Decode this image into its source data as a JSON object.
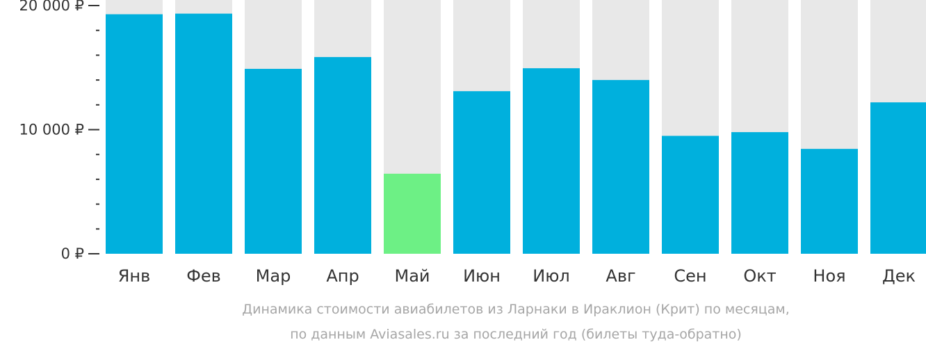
{
  "chart_data": {
    "type": "bar",
    "categories": [
      "Янв",
      "Фев",
      "Мар",
      "Апр",
      "Май",
      "Июн",
      "Июл",
      "Авг",
      "Сен",
      "Окт",
      "Ноя",
      "Дек"
    ],
    "values": [
      19300,
      19350,
      14900,
      15850,
      6450,
      13100,
      14950,
      14000,
      9500,
      9800,
      8450,
      12200
    ],
    "ylim": [
      0,
      20000
    ],
    "yticks": [
      0,
      10000,
      20000
    ],
    "ytick_labels": [
      "0 ₽",
      "10 000 ₽",
      "20 000 ₽"
    ],
    "minor_ytick_step": 2000,
    "highlight_index": 4,
    "grid": false,
    "legend": "none",
    "colors": {
      "bar": "#00b0dd",
      "highlight": "#6df085",
      "background_bar": "#e8e8e8",
      "axis": "#333333",
      "caption": "#a6a6a6"
    }
  },
  "caption": {
    "line1": "Динамика стоимости авиабилетов из Ларнаки в Ираклион (Крит) по месяцам,",
    "line2": "по данным Aviasales.ru за последний год (билеты туда-обратно)"
  }
}
